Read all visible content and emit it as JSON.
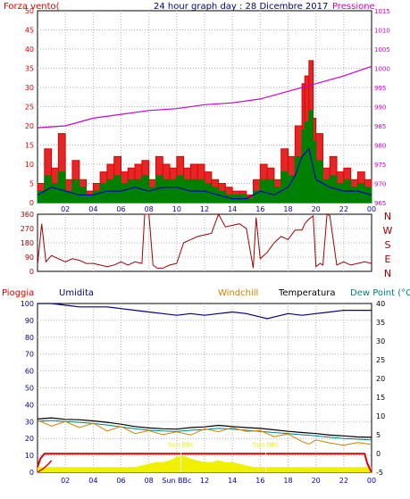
{
  "header": {
    "title": "24 hour graph day : 28 Dicembre 2017",
    "wind_label": "Forza vento(",
    "pressure_label": "Pressione"
  },
  "colors": {
    "red": "#e00000",
    "green": "#008000",
    "blue": "#0000c0",
    "magenta": "#cc00cc",
    "darkred": "#a00000",
    "navy": "#000080",
    "orange": "#d08000",
    "black": "#000000",
    "teal": "#008080",
    "yellow": "#f0f000",
    "grid": "#b0b0b0"
  },
  "legend2": {
    "pioggia": "Pioggia",
    "umidita": "Umidita",
    "windchill": "Windchill",
    "temperatura": "Temperatura",
    "dewpoint": "Dew Point (°C"
  },
  "sun_labels": {
    "sun": "Sun",
    "bbc": "BBc"
  },
  "chart_data": [
    {
      "id": "wind-pressure",
      "type": "line",
      "title": "24 hour graph day : 28 Dicembre 2017",
      "xlabels": [
        "02",
        "04",
        "06",
        "08",
        "10",
        "12",
        "14",
        "16",
        "18",
        "20",
        "22",
        "00"
      ],
      "y_left_ticks": [
        "50",
        "45",
        "40",
        "35",
        "30",
        "25",
        "20",
        "15",
        "10",
        "5",
        "0"
      ],
      "y_left_range": [
        0,
        50
      ],
      "y_right_ticks": [
        "1015",
        "1010",
        "1005",
        "1000",
        "995",
        "990",
        "985",
        "980",
        "975",
        "970",
        "965"
      ],
      "y_right_range": [
        965,
        1015
      ],
      "pressure": {
        "x": [
          0,
          2,
          4,
          6,
          8,
          10,
          12,
          14,
          16,
          18,
          20,
          22,
          24
        ],
        "y": [
          984.5,
          985,
          987,
          988,
          989,
          989.5,
          990.5,
          991,
          992,
          994,
          996,
          998,
          1000.5
        ]
      },
      "gust": {
        "x": [
          0,
          0.5,
          1,
          1.5,
          2,
          2.5,
          3,
          3.5,
          4,
          4.5,
          5,
          5.5,
          6,
          6.5,
          7,
          7.5,
          8,
          8.5,
          9,
          9.5,
          10,
          10.5,
          11,
          11.5,
          12,
          12.5,
          13,
          13.5,
          14,
          14.5,
          15,
          15.5,
          16,
          16.5,
          17,
          17.5,
          18,
          18.5,
          19,
          19.2,
          19.5,
          19.8,
          20,
          20.5,
          21,
          21.5,
          22,
          22.5,
          23,
          23.5,
          24
        ],
        "y": [
          5,
          14,
          9,
          18,
          6,
          11,
          6,
          3,
          5,
          8,
          10,
          12,
          8,
          9,
          10,
          11,
          6,
          12,
          10,
          9,
          12,
          9,
          10,
          10,
          8,
          6,
          5,
          4,
          3,
          3,
          2,
          6,
          10,
          9,
          6,
          14,
          12,
          20,
          31,
          33,
          37,
          22,
          18,
          9,
          12,
          8,
          9,
          6,
          8,
          6,
          5
        ]
      },
      "avg": {
        "x": [
          0,
          0.5,
          1,
          1.5,
          2,
          2.5,
          3,
          3.5,
          4,
          4.5,
          5,
          5.5,
          6,
          6.5,
          7,
          7.5,
          8,
          8.5,
          9,
          9.5,
          10,
          10.5,
          11,
          11.5,
          12,
          12.5,
          13,
          13.5,
          14,
          14.5,
          15,
          15.5,
          16,
          16.5,
          17,
          17.5,
          18,
          18.5,
          19,
          19.2,
          19.5,
          19.8,
          20,
          20.5,
          21,
          21.5,
          22,
          22.5,
          23,
          23.5,
          24
        ],
        "y": [
          3,
          7,
          5,
          8,
          3,
          6,
          4,
          2,
          3,
          5,
          6,
          7,
          5,
          6,
          6,
          7,
          4,
          7,
          6,
          6,
          7,
          6,
          6,
          6,
          5,
          4,
          3,
          2,
          2,
          2,
          1,
          3,
          6,
          6,
          4,
          8,
          7,
          12,
          19,
          21,
          24,
          16,
          11,
          6,
          7,
          5,
          6,
          4,
          5,
          4,
          3
        ]
      },
      "min": {
        "x": [
          0,
          1,
          2,
          3,
          4,
          5,
          6,
          7,
          8,
          9,
          10,
          11,
          12,
          13,
          14,
          15,
          16,
          17,
          18,
          18.5,
          19,
          19.5,
          20,
          21,
          22,
          23,
          24
        ],
        "y": [
          2,
          4,
          3,
          2,
          2,
          3,
          3,
          4,
          3,
          4,
          4,
          3,
          3,
          2,
          1,
          1,
          3,
          2,
          4,
          7,
          12,
          14,
          6,
          4,
          3,
          3,
          2
        ]
      }
    },
    {
      "id": "wind-direction",
      "type": "line",
      "y_left_ticks": [
        "360",
        "270",
        "180",
        "90",
        "0"
      ],
      "y_left_range": [
        0,
        360
      ],
      "y_right_ticks": [
        "N",
        "W",
        "S",
        "E",
        "N"
      ],
      "direction": {
        "x": [
          0,
          0.3,
          0.6,
          1,
          1.5,
          2,
          2.5,
          3,
          3.5,
          4,
          4.5,
          5,
          5.5,
          6,
          6.5,
          7,
          7.5,
          7.7,
          8,
          8.3,
          8.6,
          9,
          9.5,
          10,
          10.5,
          11,
          11.5,
          12,
          12.5,
          13,
          13.5,
          14,
          14.5,
          15,
          15.5,
          15.7,
          16,
          16.5,
          17,
          17.5,
          18,
          18.5,
          19,
          19.2,
          19.5,
          19.8,
          20,
          20.3,
          20.5,
          20.8,
          21,
          21.5,
          22,
          22.5,
          23,
          23.5,
          24
        ],
        "y": [
          40,
          300,
          60,
          100,
          80,
          60,
          80,
          70,
          50,
          50,
          40,
          30,
          40,
          60,
          40,
          60,
          50,
          360,
          360,
          40,
          20,
          20,
          40,
          50,
          180,
          200,
          220,
          230,
          240,
          360,
          280,
          290,
          300,
          270,
          20,
          340,
          80,
          120,
          180,
          220,
          200,
          260,
          260,
          300,
          330,
          350,
          30,
          50,
          40,
          360,
          350,
          40,
          60,
          40,
          50,
          60,
          50
        ]
      }
    },
    {
      "id": "rain-humidity-temperature",
      "type": "line",
      "xlabels": [
        "02",
        "04",
        "06",
        "08",
        "Sun BBc",
        "12",
        "14",
        "16",
        "18",
        "20",
        "22",
        "00"
      ],
      "y_left_ticks": [
        "100",
        "90",
        "80",
        "70",
        "60",
        "50",
        "40",
        "30",
        "20",
        "10",
        "0"
      ],
      "y_left_range": [
        0,
        100
      ],
      "y_right_ticks": [
        "40",
        "35",
        "30",
        "25",
        "20",
        "15",
        "10",
        "5",
        "0",
        "-5"
      ],
      "y_right_range": [
        -5,
        40
      ],
      "humidity": {
        "x": [
          0,
          1,
          2,
          3,
          4,
          5,
          6,
          7,
          8,
          9,
          10,
          11,
          12,
          13,
          14,
          15,
          16,
          16.5,
          17,
          18,
          19,
          20,
          21,
          22,
          23,
          24
        ],
        "y": [
          100,
          100,
          99,
          98,
          98,
          98,
          97,
          96,
          95,
          94,
          93,
          94,
          93,
          94,
          95,
          94,
          92,
          91,
          92,
          94,
          93,
          94,
          95,
          96,
          96,
          96
        ]
      },
      "temperature": {
        "x": [
          0,
          1,
          2,
          3,
          4,
          5,
          6,
          7,
          8,
          9,
          10,
          11,
          12,
          13,
          14,
          15,
          16,
          17,
          18,
          19,
          20,
          21,
          22,
          23,
          24
        ],
        "y": [
          9.2,
          9.5,
          9.1,
          9.0,
          8.7,
          8.3,
          7.8,
          7.2,
          6.8,
          6.6,
          6.5,
          6.9,
          7.1,
          7.5,
          7.2,
          6.9,
          6.7,
          6.3,
          5.9,
          5.6,
          5.3,
          4.9,
          4.7,
          4.4,
          4.3
        ]
      },
      "dewpoint": {
        "x": [
          0,
          1,
          2,
          3,
          4,
          5,
          6,
          7,
          8,
          9,
          10,
          11,
          12,
          13,
          14,
          15,
          16,
          17,
          18,
          19,
          20,
          21,
          22,
          23,
          24
        ],
        "y": [
          8.6,
          8.8,
          8.5,
          8.3,
          8.0,
          7.6,
          7.1,
          6.6,
          6.2,
          6.0,
          5.9,
          6.2,
          6.4,
          6.7,
          6.5,
          6.2,
          5.9,
          5.6,
          5.3,
          5.0,
          4.7,
          4.3,
          4.0,
          3.8,
          3.6
        ]
      },
      "windchill": {
        "x": [
          0,
          1,
          2,
          3,
          4,
          5,
          6,
          7,
          8,
          9,
          10,
          11,
          12,
          13,
          14,
          15,
          16,
          17,
          18,
          19,
          19.5,
          20,
          21,
          22,
          23,
          24
        ],
        "y": [
          8.9,
          7.3,
          8.5,
          6.9,
          8.1,
          6.0,
          7.2,
          5.3,
          6.1,
          5.0,
          5.8,
          4.9,
          6.6,
          5.8,
          6.9,
          5.9,
          6.1,
          4.5,
          5.2,
          3.2,
          2.5,
          3.6,
          2.8,
          2.2,
          2.9,
          2.4
        ]
      },
      "rain_total": {
        "x": [
          0,
          0.2,
          0.5,
          1,
          5,
          10,
          15,
          20,
          23.5,
          23.7,
          24
        ],
        "y": [
          3,
          8,
          11,
          11,
          11,
          11,
          11,
          11,
          11,
          5,
          0
        ]
      },
      "rain_rate": {
        "x": [
          0,
          0.4,
          0.8,
          1
        ],
        "y": [
          0,
          2,
          5,
          7
        ]
      },
      "solar": {
        "x": [
          0,
          4,
          6,
          7,
          7.5,
          8,
          8.5,
          9,
          9.5,
          10,
          10.5,
          11,
          11.5,
          12,
          12.5,
          13,
          13.5,
          14,
          14.5,
          15,
          15.5,
          16,
          16.5,
          17,
          24
        ],
        "y": [
          3,
          3,
          3,
          3,
          4,
          5,
          6,
          6,
          7,
          9,
          10,
          8,
          7,
          6,
          6,
          7,
          6,
          6,
          5,
          4,
          3,
          3,
          3,
          3,
          3
        ]
      }
    }
  ]
}
